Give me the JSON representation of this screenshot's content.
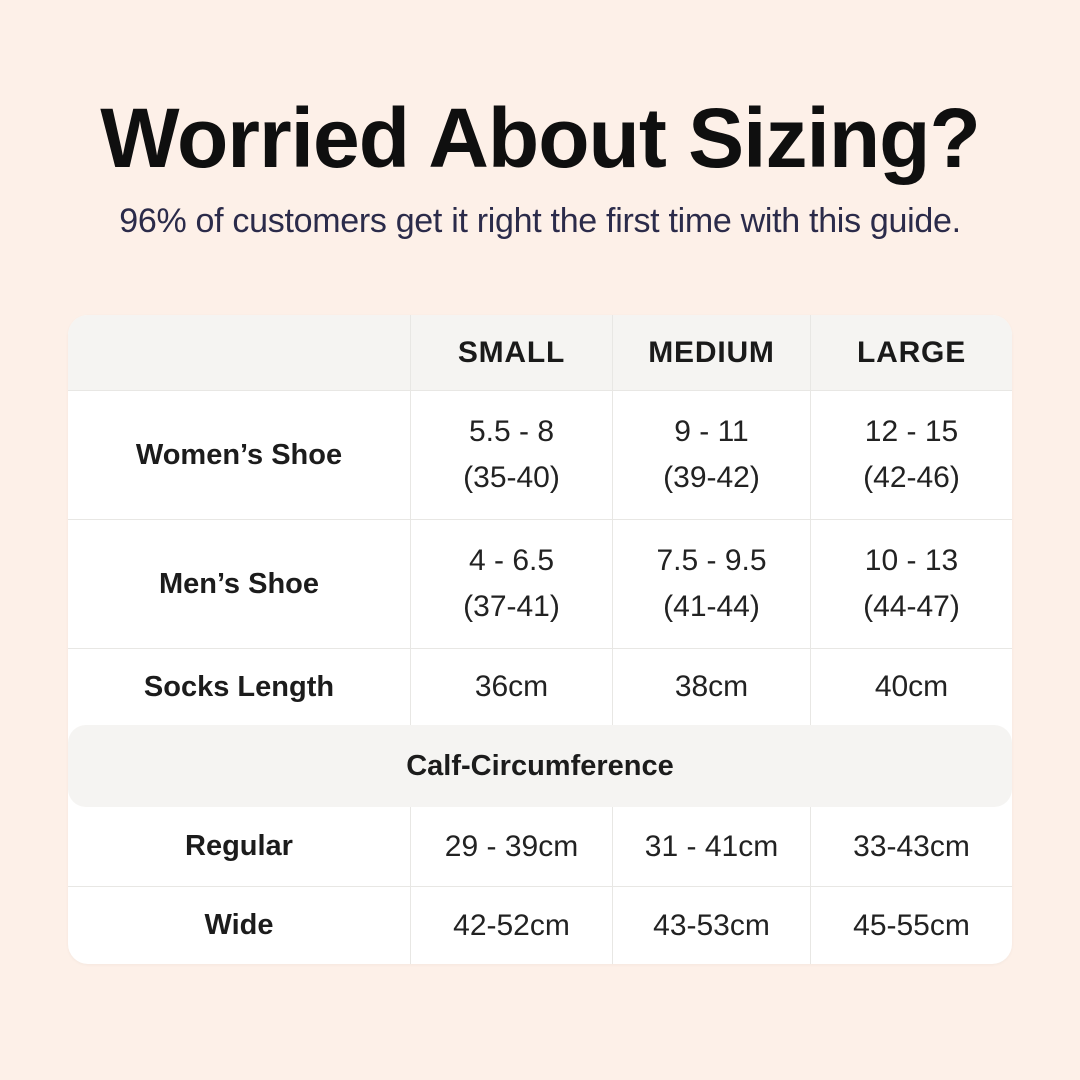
{
  "header": {
    "title": "Worried About Sizing?",
    "subtitle": "96% of customers get it right the first time with this guide."
  },
  "size_table": {
    "column_headers": [
      "SMALL",
      "MEDIUM",
      "LARGE"
    ],
    "rows": [
      {
        "label": "Women’s Shoe",
        "small": {
          "line1": "5.5 - 8",
          "line2": "(35-40)"
        },
        "medium": {
          "line1": "9 - 11",
          "line2": "(39-42)"
        },
        "large": {
          "line1": "12 - 15",
          "line2": "(42-46)"
        }
      },
      {
        "label": "Men’s Shoe",
        "small": {
          "line1": "4 - 6.5",
          "line2": "(37-41)"
        },
        "medium": {
          "line1": "7.5 - 9.5",
          "line2": "(41-44)"
        },
        "large": {
          "line1": "10 - 13",
          "line2": "(44-47)"
        }
      },
      {
        "label": "Socks Length",
        "small": {
          "line1": "36cm"
        },
        "medium": {
          "line1": "38cm"
        },
        "large": {
          "line1": "40cm"
        }
      }
    ],
    "section_header": "Calf-Circumference",
    "calf_rows": [
      {
        "label": "Regular",
        "small": "29 - 39cm",
        "medium": "31 - 41cm",
        "large": "33-43cm"
      },
      {
        "label": "Wide",
        "small": "42-52cm",
        "medium": "43-53cm",
        "large": "45-55cm"
      }
    ]
  },
  "colors": {
    "background": "#fdf0e8",
    "card": "#ffffff",
    "header_band": "#f5f4f2",
    "border": "#e8e7e4",
    "title_text": "#0f0f0f",
    "subtitle_text": "#2b2b4a",
    "table_text": "#1c1c1c"
  },
  "chart_data": {
    "type": "table",
    "title": "Worried About Sizing?",
    "subtitle": "96% of customers get it right the first time with this guide.",
    "columns": [
      "",
      "SMALL",
      "MEDIUM",
      "LARGE"
    ],
    "rows": [
      [
        "Women’s Shoe",
        "5.5 - 8 (35-40)",
        "9 - 11 (39-42)",
        "12 - 15 (42-46)"
      ],
      [
        "Men’s Shoe",
        "4 - 6.5 (37-41)",
        "7.5 - 9.5 (41-44)",
        "10 - 13 (44-47)"
      ],
      [
        "Socks Length",
        "36cm",
        "38cm",
        "40cm"
      ],
      [
        "Calf-Circumference",
        "",
        "",
        ""
      ],
      [
        "Regular",
        "29 - 39cm",
        "31 - 41cm",
        "33-43cm"
      ],
      [
        "Wide",
        "42-52cm",
        "43-53cm",
        "45-55cm"
      ]
    ],
    "layout": {
      "section_header_row_index": 3,
      "grid": true,
      "legend_position": "none"
    }
  }
}
